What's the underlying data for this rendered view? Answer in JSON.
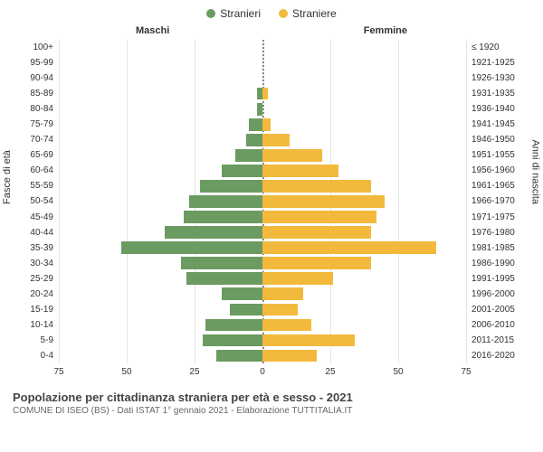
{
  "legend": {
    "male": {
      "label": "Stranieri",
      "color": "#6b9b61"
    },
    "female": {
      "label": "Straniere",
      "color": "#f2b93c"
    }
  },
  "headers": {
    "male_col": "Maschi",
    "female_col": "Femmine",
    "left_axis": "Fasce di età",
    "right_axis": "Anni di nascita"
  },
  "chart": {
    "type": "population-pyramid",
    "x_max_each_side": 75,
    "x_ticks": [
      75,
      50,
      25,
      0,
      25,
      50,
      75
    ],
    "grid_color": "#e5e5e5",
    "center_line_color": "#888888",
    "background_color": "#ffffff",
    "bar_color_male": "#6b9b61",
    "bar_color_female": "#f2b93c",
    "label_fontsize": 10,
    "rows": [
      {
        "age": "100+",
        "birth": "≤ 1920",
        "m": 0,
        "f": 0
      },
      {
        "age": "95-99",
        "birth": "1921-1925",
        "m": 0,
        "f": 0
      },
      {
        "age": "90-94",
        "birth": "1926-1930",
        "m": 0,
        "f": 0
      },
      {
        "age": "85-89",
        "birth": "1931-1935",
        "m": 2,
        "f": 2
      },
      {
        "age": "80-84",
        "birth": "1936-1940",
        "m": 2,
        "f": 0
      },
      {
        "age": "75-79",
        "birth": "1941-1945",
        "m": 5,
        "f": 3
      },
      {
        "age": "70-74",
        "birth": "1946-1950",
        "m": 6,
        "f": 10
      },
      {
        "age": "65-69",
        "birth": "1951-1955",
        "m": 10,
        "f": 22
      },
      {
        "age": "60-64",
        "birth": "1956-1960",
        "m": 15,
        "f": 28
      },
      {
        "age": "55-59",
        "birth": "1961-1965",
        "m": 23,
        "f": 40
      },
      {
        "age": "50-54",
        "birth": "1966-1970",
        "m": 27,
        "f": 45
      },
      {
        "age": "45-49",
        "birth": "1971-1975",
        "m": 29,
        "f": 42
      },
      {
        "age": "40-44",
        "birth": "1976-1980",
        "m": 36,
        "f": 40
      },
      {
        "age": "35-39",
        "birth": "1981-1985",
        "m": 52,
        "f": 64
      },
      {
        "age": "30-34",
        "birth": "1986-1990",
        "m": 30,
        "f": 40
      },
      {
        "age": "25-29",
        "birth": "1991-1995",
        "m": 28,
        "f": 26
      },
      {
        "age": "20-24",
        "birth": "1996-2000",
        "m": 15,
        "f": 15
      },
      {
        "age": "15-19",
        "birth": "2001-2005",
        "m": 12,
        "f": 13
      },
      {
        "age": "10-14",
        "birth": "2006-2010",
        "m": 21,
        "f": 18
      },
      {
        "age": "5-9",
        "birth": "2011-2015",
        "m": 22,
        "f": 34
      },
      {
        "age": "0-4",
        "birth": "2016-2020",
        "m": 17,
        "f": 20
      }
    ]
  },
  "caption": {
    "title": "Popolazione per cittadinanza straniera per età e sesso - 2021",
    "subtitle": "COMUNE DI ISEO (BS) - Dati ISTAT 1° gennaio 2021 - Elaborazione TUTTITALIA.IT"
  }
}
